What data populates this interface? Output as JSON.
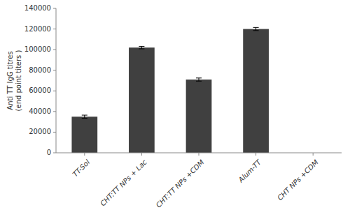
{
  "chart_data": {
    "type": "bar",
    "categories": [
      "TT-Sol",
      "CHT:TT NPs + Lac",
      "CHT:TT NPs +CDM",
      "Alum-TT",
      "CHT NPs +CDM"
    ],
    "values": [
      35000,
      102000,
      71000,
      120000,
      0
    ],
    "errors": [
      1500,
      1200,
      1500,
      1500,
      0
    ],
    "color": "#404040",
    "ylabel": "Anti TT IgG titres\n(end point titers )",
    "ylim": [
      0,
      140000
    ],
    "yticks": [
      0,
      20000,
      40000,
      60000,
      80000,
      100000,
      120000,
      140000
    ],
    "grid": false
  }
}
